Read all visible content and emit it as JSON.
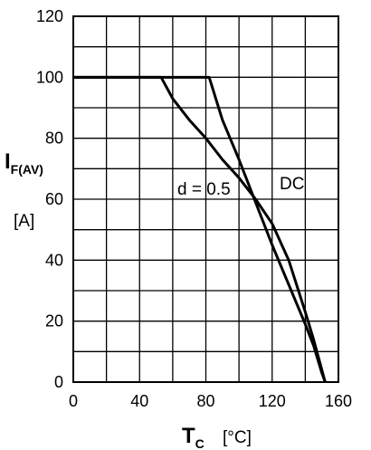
{
  "chart_data": {
    "type": "line",
    "x_ticks": [
      0,
      40,
      80,
      120,
      160
    ],
    "y_ticks": [
      0,
      20,
      40,
      60,
      80,
      100,
      120
    ],
    "xlim": [
      0,
      160
    ],
    "ylim": [
      0,
      120
    ],
    "grid": true,
    "ylabel_main": "I",
    "ylabel_sub": "F(AV)",
    "ylabel_unit": "[A]",
    "xlabel_main": "T",
    "xlabel_sub": "C",
    "xlabel_unit": "[°C]",
    "series": [
      {
        "name": "DC",
        "values": [
          [
            0,
            100
          ],
          [
            82,
            100
          ],
          [
            90,
            86
          ],
          [
            100,
            73
          ],
          [
            110,
            59
          ],
          [
            120,
            45
          ],
          [
            130,
            32
          ],
          [
            140,
            19
          ],
          [
            145,
            12
          ],
          [
            150,
            3
          ],
          [
            152,
            0
          ]
        ]
      },
      {
        "name": "d = 0.5",
        "values": [
          [
            0,
            100
          ],
          [
            53,
            100
          ],
          [
            60,
            93
          ],
          [
            70,
            86
          ],
          [
            80,
            80
          ],
          [
            90,
            73
          ],
          [
            100,
            67
          ],
          [
            110,
            60
          ],
          [
            120,
            52
          ],
          [
            130,
            40
          ],
          [
            140,
            23
          ],
          [
            145,
            14
          ],
          [
            150,
            4
          ],
          [
            152,
            0
          ]
        ]
      }
    ],
    "annotations": [
      {
        "text": "d = 0.5",
        "series": "d = 0.5"
      },
      {
        "text": "DC",
        "series": "DC"
      }
    ],
    "colors": {
      "line": "#000000",
      "grid": "#000000",
      "background": "#ffffff"
    }
  }
}
